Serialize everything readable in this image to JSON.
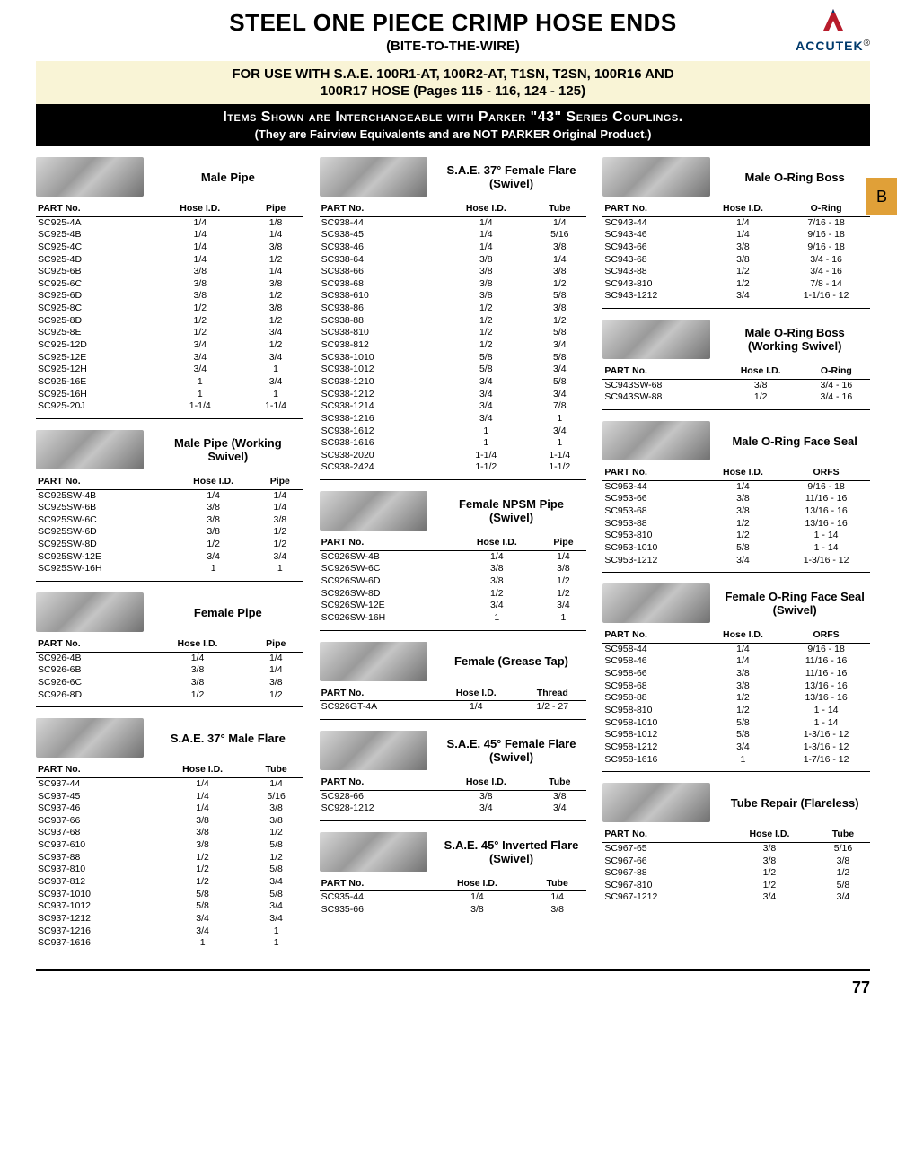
{
  "header": {
    "title": "STEEL ONE PIECE CRIMP HOSE ENDS",
    "subtitle": "(BITE-TO-THE-WIRE)",
    "logo_text": "ACCUTEK",
    "logo_r": "®"
  },
  "banner": {
    "line1": "FOR USE WITH S.A.E. 100R1-AT, 100R2-AT, T1SN, T2SN, 100R16 AND",
    "line2": "100R17 HOSE (Pages 115 - 116, 124 - 125)"
  },
  "darkbanner": {
    "line1": "Items Shown are Interchangeable with Parker \"43\" Series Couplings.",
    "line2": "(They are Fairview Equivalents and are NOT PARKER Original Product.)"
  },
  "tab": "B",
  "page_number": "77",
  "columns": [
    [
      {
        "title": "Male Pipe",
        "headers": [
          "PART No.",
          "Hose I.D.",
          "Pipe"
        ],
        "rows": [
          [
            "SC925-4A",
            "1/4",
            "1/8"
          ],
          [
            "SC925-4B",
            "1/4",
            "1/4"
          ],
          [
            "SC925-4C",
            "1/4",
            "3/8"
          ],
          [
            "SC925-4D",
            "1/4",
            "1/2"
          ],
          [
            "SC925-6B",
            "3/8",
            "1/4"
          ],
          [
            "SC925-6C",
            "3/8",
            "3/8"
          ],
          [
            "SC925-6D",
            "3/8",
            "1/2"
          ],
          [
            "SC925-8C",
            "1/2",
            "3/8"
          ],
          [
            "SC925-8D",
            "1/2",
            "1/2"
          ],
          [
            "SC925-8E",
            "1/2",
            "3/4"
          ],
          [
            "SC925-12D",
            "3/4",
            "1/2"
          ],
          [
            "SC925-12E",
            "3/4",
            "3/4"
          ],
          [
            "SC925-12H",
            "3/4",
            "1"
          ],
          [
            "SC925-16E",
            "1",
            "3/4"
          ],
          [
            "SC925-16H",
            "1",
            "1"
          ],
          [
            "SC925-20J",
            "1-1/4",
            "1-1/4"
          ]
        ]
      },
      {
        "title": "Male Pipe (Working Swivel)",
        "headers": [
          "PART No.",
          "Hose I.D.",
          "Pipe"
        ],
        "rows": [
          [
            "SC925SW-4B",
            "1/4",
            "1/4"
          ],
          [
            "SC925SW-6B",
            "3/8",
            "1/4"
          ],
          [
            "SC925SW-6C",
            "3/8",
            "3/8"
          ],
          [
            "SC925SW-6D",
            "3/8",
            "1/2"
          ],
          [
            "SC925SW-8D",
            "1/2",
            "1/2"
          ],
          [
            "SC925SW-12E",
            "3/4",
            "3/4"
          ],
          [
            "SC925SW-16H",
            "1",
            "1"
          ]
        ]
      },
      {
        "title": "Female Pipe",
        "headers": [
          "PART No.",
          "Hose I.D.",
          "Pipe"
        ],
        "rows": [
          [
            "SC926-4B",
            "1/4",
            "1/4"
          ],
          [
            "SC926-6B",
            "3/8",
            "1/4"
          ],
          [
            "SC926-6C",
            "3/8",
            "3/8"
          ],
          [
            "SC926-8D",
            "1/2",
            "1/2"
          ]
        ]
      },
      {
        "title": "S.A.E. 37° Male Flare",
        "headers": [
          "PART No.",
          "Hose I.D.",
          "Tube"
        ],
        "rows": [
          [
            "SC937-44",
            "1/4",
            "1/4"
          ],
          [
            "SC937-45",
            "1/4",
            "5/16"
          ],
          [
            "SC937-46",
            "1/4",
            "3/8"
          ],
          [
            "SC937-66",
            "3/8",
            "3/8"
          ],
          [
            "SC937-68",
            "3/8",
            "1/2"
          ],
          [
            "SC937-610",
            "3/8",
            "5/8"
          ],
          [
            "SC937-88",
            "1/2",
            "1/2"
          ],
          [
            "SC937-810",
            "1/2",
            "5/8"
          ],
          [
            "SC937-812",
            "1/2",
            "3/4"
          ],
          [
            "SC937-1010",
            "5/8",
            "5/8"
          ],
          [
            "SC937-1012",
            "5/8",
            "3/4"
          ],
          [
            "SC937-1212",
            "3/4",
            "3/4"
          ],
          [
            "SC937-1216",
            "3/4",
            "1"
          ],
          [
            "SC937-1616",
            "1",
            "1"
          ]
        ]
      }
    ],
    [
      {
        "title": "S.A.E. 37° Female Flare (Swivel)",
        "headers": [
          "PART No.",
          "Hose I.D.",
          "Tube"
        ],
        "rows": [
          [
            "SC938-44",
            "1/4",
            "1/4"
          ],
          [
            "SC938-45",
            "1/4",
            "5/16"
          ],
          [
            "SC938-46",
            "1/4",
            "3/8"
          ],
          [
            "SC938-64",
            "3/8",
            "1/4"
          ],
          [
            "SC938-66",
            "3/8",
            "3/8"
          ],
          [
            "SC938-68",
            "3/8",
            "1/2"
          ],
          [
            "SC938-610",
            "3/8",
            "5/8"
          ],
          [
            "SC938-86",
            "1/2",
            "3/8"
          ],
          [
            "SC938-88",
            "1/2",
            "1/2"
          ],
          [
            "SC938-810",
            "1/2",
            "5/8"
          ],
          [
            "SC938-812",
            "1/2",
            "3/4"
          ],
          [
            "SC938-1010",
            "5/8",
            "5/8"
          ],
          [
            "SC938-1012",
            "5/8",
            "3/4"
          ],
          [
            "SC938-1210",
            "3/4",
            "5/8"
          ],
          [
            "SC938-1212",
            "3/4",
            "3/4"
          ],
          [
            "SC938-1214",
            "3/4",
            "7/8"
          ],
          [
            "SC938-1216",
            "3/4",
            "1"
          ],
          [
            "SC938-1612",
            "1",
            "3/4"
          ],
          [
            "SC938-1616",
            "1",
            "1"
          ],
          [
            "SC938-2020",
            "1-1/4",
            "1-1/4"
          ],
          [
            "SC938-2424",
            "1-1/2",
            "1-1/2"
          ]
        ]
      },
      {
        "title": "Female NPSM Pipe (Swivel)",
        "headers": [
          "PART No.",
          "Hose I.D.",
          "Pipe"
        ],
        "rows": [
          [
            "SC926SW-4B",
            "1/4",
            "1/4"
          ],
          [
            "SC926SW-6C",
            "3/8",
            "3/8"
          ],
          [
            "SC926SW-6D",
            "3/8",
            "1/2"
          ],
          [
            "SC926SW-8D",
            "1/2",
            "1/2"
          ],
          [
            "SC926SW-12E",
            "3/4",
            "3/4"
          ],
          [
            "SC926SW-16H",
            "1",
            "1"
          ]
        ]
      },
      {
        "title": "Female (Grease Tap)",
        "headers": [
          "PART No.",
          "Hose I.D.",
          "Thread"
        ],
        "rows": [
          [
            "SC926GT-4A",
            "1/4",
            "1/2 - 27"
          ]
        ]
      },
      {
        "title": "S.A.E. 45° Female Flare (Swivel)",
        "headers": [
          "PART No.",
          "Hose I.D.",
          "Tube"
        ],
        "rows": [
          [
            "SC928-66",
            "3/8",
            "3/8"
          ],
          [
            "SC928-1212",
            "3/4",
            "3/4"
          ]
        ]
      },
      {
        "title": "S.A.E. 45° Inverted Flare (Swivel)",
        "headers": [
          "PART No.",
          "Hose I.D.",
          "Tube"
        ],
        "rows": [
          [
            "SC935-44",
            "1/4",
            "1/4"
          ],
          [
            "SC935-66",
            "3/8",
            "3/8"
          ]
        ]
      }
    ],
    [
      {
        "title": "Male O-Ring Boss",
        "headers": [
          "PART No.",
          "Hose I.D.",
          "O-Ring"
        ],
        "rows": [
          [
            "SC943-44",
            "1/4",
            "7/16 - 18"
          ],
          [
            "SC943-46",
            "1/4",
            "9/16 - 18"
          ],
          [
            "SC943-66",
            "3/8",
            "9/16 - 18"
          ],
          [
            "SC943-68",
            "3/8",
            "3/4 - 16"
          ],
          [
            "SC943-88",
            "1/2",
            "3/4 - 16"
          ],
          [
            "SC943-810",
            "1/2",
            "7/8 - 14"
          ],
          [
            "SC943-1212",
            "3/4",
            "1-1/16 - 12"
          ]
        ]
      },
      {
        "title": "Male O-Ring Boss (Working Swivel)",
        "headers": [
          "PART No.",
          "Hose I.D.",
          "O-Ring"
        ],
        "rows": [
          [
            "SC943SW-68",
            "3/8",
            "3/4 - 16"
          ],
          [
            "SC943SW-88",
            "1/2",
            "3/4 - 16"
          ]
        ]
      },
      {
        "title": "Male O-Ring Face Seal",
        "headers": [
          "PART No.",
          "Hose I.D.",
          "ORFS"
        ],
        "rows": [
          [
            "SC953-44",
            "1/4",
            "9/16 - 18"
          ],
          [
            "SC953-66",
            "3/8",
            "11/16 - 16"
          ],
          [
            "SC953-68",
            "3/8",
            "13/16 - 16"
          ],
          [
            "SC953-88",
            "1/2",
            "13/16 - 16"
          ],
          [
            "SC953-810",
            "1/2",
            "1 - 14"
          ],
          [
            "SC953-1010",
            "5/8",
            "1 - 14"
          ],
          [
            "SC953-1212",
            "3/4",
            "1-3/16 - 12"
          ]
        ]
      },
      {
        "title": "Female O-Ring Face Seal (Swivel)",
        "headers": [
          "PART No.",
          "Hose I.D.",
          "ORFS"
        ],
        "rows": [
          [
            "SC958-44",
            "1/4",
            "9/16 - 18"
          ],
          [
            "SC958-46",
            "1/4",
            "11/16 - 16"
          ],
          [
            "SC958-66",
            "3/8",
            "11/16 - 16"
          ],
          [
            "SC958-68",
            "3/8",
            "13/16 - 16"
          ],
          [
            "SC958-88",
            "1/2",
            "13/16 - 16"
          ],
          [
            "SC958-810",
            "1/2",
            "1 - 14"
          ],
          [
            "SC958-1010",
            "5/8",
            "1 - 14"
          ],
          [
            "SC958-1012",
            "5/8",
            "1-3/16 - 12"
          ],
          [
            "SC958-1212",
            "3/4",
            "1-3/16 - 12"
          ],
          [
            "SC958-1616",
            "1",
            "1-7/16 - 12"
          ]
        ]
      },
      {
        "title": "Tube Repair (Flareless)",
        "headers": [
          "PART No.",
          "Hose I.D.",
          "Tube"
        ],
        "rows": [
          [
            "SC967-65",
            "3/8",
            "5/16"
          ],
          [
            "SC967-66",
            "3/8",
            "3/8"
          ],
          [
            "SC967-88",
            "1/2",
            "1/2"
          ],
          [
            "SC967-810",
            "1/2",
            "5/8"
          ],
          [
            "SC967-1212",
            "3/4",
            "3/4"
          ]
        ]
      }
    ]
  ]
}
